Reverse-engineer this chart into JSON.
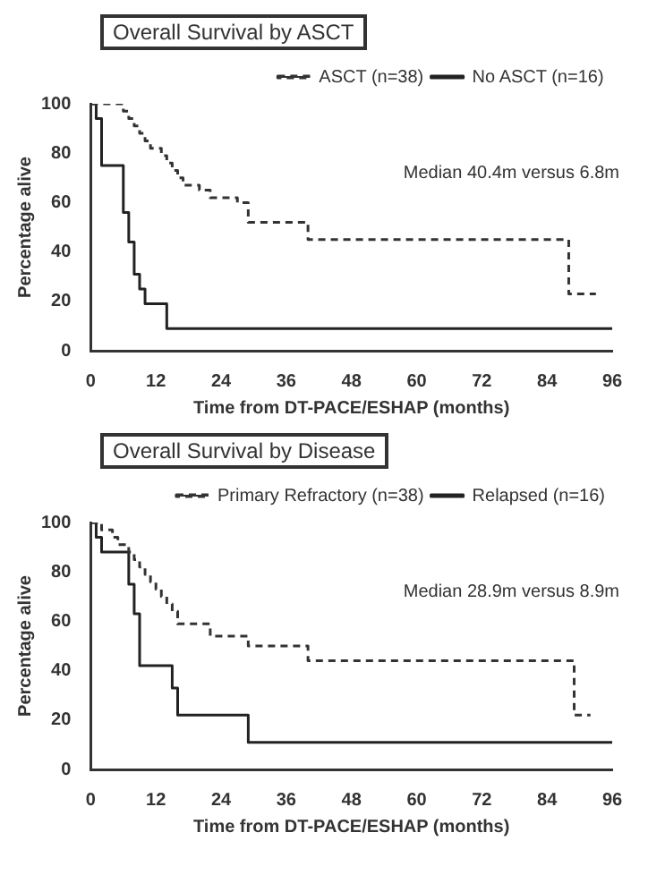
{
  "chart_data": [
    {
      "type": "step",
      "title": "Overall Survival by ASCT",
      "xlabel": "Time from DT-PACE/ESHAP (months)",
      "ylabel": "Percentage alive",
      "annotations": [
        "Median 40.4m versus 6.8m"
      ],
      "xlim": [
        0,
        96
      ],
      "xticks": [
        0,
        12,
        24,
        36,
        48,
        60,
        72,
        84,
        96
      ],
      "ylim": [
        0,
        100
      ],
      "yticks": [
        0,
        20,
        40,
        60,
        80,
        100
      ],
      "grid": false,
      "legend": "top right",
      "series": [
        {
          "name": "ASCT (n=38)",
          "color": "#333333",
          "line_style": "dashed",
          "x": [
            0,
            6,
            7,
            8,
            9,
            10,
            11,
            13,
            14,
            15,
            16,
            17,
            20,
            22,
            27,
            29,
            40,
            88,
            93
          ],
          "values": [
            100,
            97,
            94,
            91,
            88,
            85,
            82,
            79,
            76,
            73,
            70,
            67,
            65,
            62,
            60,
            52,
            45,
            23,
            23
          ]
        },
        {
          "name": "No ASCT (n=16)",
          "color": "#222222",
          "line_style": "solid",
          "x": [
            0,
            1,
            2,
            6,
            7,
            8,
            9,
            10,
            14,
            96
          ],
          "values": [
            100,
            94,
            75,
            56,
            44,
            31,
            25,
            19,
            9,
            9
          ]
        }
      ]
    },
    {
      "type": "step",
      "title": "Overall Survival by Disease",
      "xlabel": "Time from DT-PACE/ESHAP (months)",
      "ylabel": "Percentage alive",
      "annotations": [
        "Median 28.9m versus 8.9m"
      ],
      "xlim": [
        0,
        96
      ],
      "xticks": [
        0,
        12,
        24,
        36,
        48,
        60,
        72,
        84,
        96
      ],
      "ylim": [
        0,
        100
      ],
      "yticks": [
        0,
        20,
        40,
        60,
        80,
        100
      ],
      "grid": false,
      "legend": "top right",
      "series": [
        {
          "name": "Primary Refractory (n=38)",
          "color": "#333333",
          "line_style": "dashed",
          "x": [
            0,
            2,
            4,
            5,
            7,
            8,
            9,
            10,
            11,
            12,
            13,
            14,
            15,
            16,
            22,
            29,
            40,
            89,
            92
          ],
          "values": [
            100,
            97,
            94,
            91,
            88,
            85,
            82,
            79,
            76,
            73,
            70,
            67,
            64,
            59,
            54,
            50,
            44,
            22,
            22
          ]
        },
        {
          "name": "Relapsed (n=16)",
          "color": "#222222",
          "line_style": "solid",
          "x": [
            0,
            1,
            2,
            6,
            7,
            8,
            9,
            14,
            15,
            16,
            29,
            96
          ],
          "values": [
            100,
            94,
            88,
            88,
            75,
            63,
            42,
            42,
            33,
            22,
            11,
            11
          ]
        }
      ]
    }
  ]
}
